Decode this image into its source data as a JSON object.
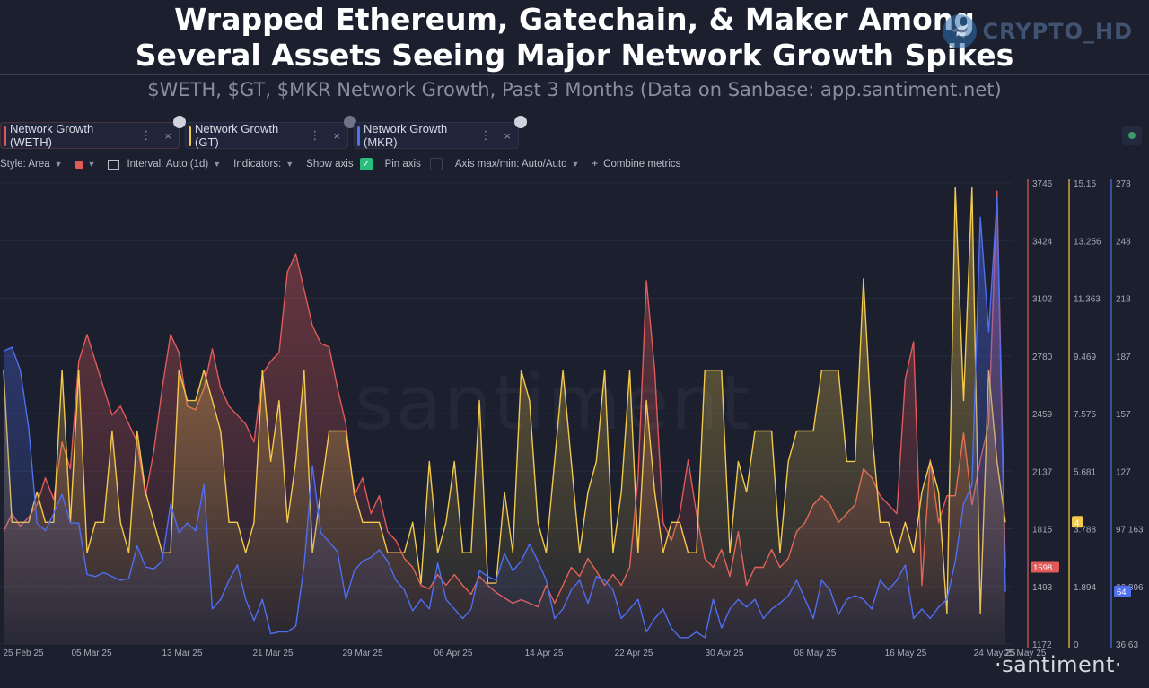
{
  "title": {
    "line1": "Wrapped Ethereum, Gatechain, & Maker Among",
    "line2": "Several Assets Seeing Major Network Growth Spikes"
  },
  "subtitle": "$WETH, $GT, $MKR Network Growth, Past 3 Months (Data on Sanbase: app.santiment.net)",
  "brand_watermark": "CRYPTO_HD",
  "background_watermark": "santiment",
  "footer_logo": "·santiment·",
  "tabs": [
    {
      "label": "Network Growth (WETH)",
      "color": "#e05a5a"
    },
    {
      "label": "Network Growth (GT)",
      "color": "#f2c94c"
    },
    {
      "label": "Network Growth (MKR)",
      "color": "#4f6ef0"
    }
  ],
  "toolbar": {
    "style_label": "Style: Area",
    "interval_label": "Interval: Auto (1d)",
    "indicators_label": "Indicators:",
    "show_axis_label": "Show axis",
    "pin_axis_label": "Pin axis",
    "axis_minmax_label": "Axis max/min: Auto/Auto",
    "combine_label": "Combine metrics"
  },
  "chart_data": {
    "type": "area",
    "title": "$WETH, $GT, $MKR Network Growth, Past 3 Months",
    "x_tick_labels": [
      "25 Feb 25",
      "05 Mar 25",
      "13 Mar 25",
      "21 Mar 25",
      "29 Mar 25",
      "06 Apr 25",
      "14 Apr 25",
      "22 Apr 25",
      "30 Apr 25",
      "08 May 25",
      "16 May 25",
      "24 May 25",
      "25 May 25"
    ],
    "axes": [
      {
        "series": "WETH",
        "color": "#e05a5a",
        "ylim": [
          1172,
          3746
        ],
        "ticks": [
          "3746",
          "3424",
          "3102",
          "2780",
          "2459",
          "2137",
          "1815",
          "1493",
          "1172"
        ],
        "last_value_label": "1598"
      },
      {
        "series": "GT",
        "color": "#f2c94c",
        "ylim": [
          0,
          15.15
        ],
        "ticks": [
          "15.15",
          "13.256",
          "11.363",
          "9.469",
          "7.575",
          "5.681",
          "3.788",
          "1.894",
          "0"
        ],
        "last_value_label": "4"
      },
      {
        "series": "MKR",
        "color": "#4f6ef0",
        "ylim": [
          36.63,
          278
        ],
        "ticks": [
          "278",
          "248",
          "218",
          "187",
          "157",
          "127",
          "97.163",
          "66.896",
          "36.63"
        ],
        "last_value_label": "64"
      }
    ],
    "series": [
      {
        "name": "Network Growth (WETH)",
        "color": "#e05a5a",
        "values": [
          1800,
          1900,
          1830,
          1880,
          1950,
          2100,
          1980,
          2300,
          2150,
          2750,
          2900,
          2750,
          2600,
          2450,
          2500,
          2400,
          2300,
          2000,
          2250,
          2600,
          2900,
          2800,
          2500,
          2480,
          2600,
          2820,
          2600,
          2500,
          2450,
          2400,
          2300,
          2680,
          2750,
          2800,
          3250,
          3350,
          3150,
          2950,
          2850,
          2830,
          2600,
          2400,
          2000,
          2100,
          1900,
          2000,
          1800,
          1750,
          1650,
          1600,
          1500,
          1480,
          1560,
          1500,
          1560,
          1500,
          1450,
          1550,
          1500,
          1460,
          1430,
          1400,
          1420,
          1400,
          1380,
          1500,
          1400,
          1500,
          1600,
          1550,
          1650,
          1580,
          1500,
          1560,
          1500,
          1600,
          2100,
          3200,
          2700,
          1850,
          1750,
          1900,
          2200,
          1900,
          1650,
          1600,
          1700,
          1550,
          1800,
          1500,
          1600,
          1600,
          1700,
          1600,
          1650,
          1800,
          1850,
          1950,
          2000,
          1950,
          1850,
          1900,
          1950,
          2150,
          2100,
          2000,
          1950,
          1900,
          2650,
          2860,
          1500,
          2200,
          1850,
          2000,
          2000,
          2350,
          1950,
          2200,
          2400,
          3700,
          1600
        ]
      },
      {
        "name": "Network Growth (GT)",
        "color": "#f2c94c",
        "values": [
          9,
          4,
          4,
          4,
          5,
          4,
          4,
          9,
          4,
          9,
          3,
          4,
          4,
          7,
          4,
          3,
          7,
          5,
          4,
          3,
          3,
          9,
          8,
          8,
          9,
          8,
          7,
          4,
          4,
          3,
          4,
          9,
          6,
          8,
          4,
          6,
          9,
          3,
          5,
          7,
          7,
          7,
          5,
          4,
          4,
          4,
          3,
          3,
          3,
          4,
          2,
          6,
          3,
          4,
          6,
          3,
          3,
          8,
          2,
          2,
          5,
          3,
          9,
          8,
          4,
          3,
          6,
          9,
          6,
          3,
          5,
          6,
          9,
          3,
          5,
          9,
          3,
          8,
          5,
          3,
          4,
          4,
          3,
          3,
          9,
          9,
          9,
          3,
          6,
          5,
          7,
          7,
          7,
          3,
          6,
          7,
          7,
          7,
          9,
          9,
          9,
          6,
          6,
          12,
          7,
          4,
          4,
          3,
          4,
          3,
          5,
          6,
          5,
          1,
          15,
          8,
          15,
          1,
          9,
          6,
          4
        ]
      },
      {
        "name": "Network Growth (MKR)",
        "color": "#4f6ef0",
        "values": [
          190,
          192,
          180,
          150,
          100,
          96,
          105,
          115,
          100,
          100,
          73,
          72,
          74,
          72,
          70,
          71,
          88,
          77,
          76,
          80,
          110,
          95,
          100,
          96,
          120,
          55,
          60,
          70,
          78,
          60,
          49,
          60,
          42,
          43,
          43,
          46,
          78,
          130,
          95,
          90,
          85,
          60,
          75,
          80,
          82,
          86,
          80,
          70,
          65,
          54,
          60,
          55,
          79,
          60,
          55,
          50,
          55,
          75,
          72,
          70,
          84,
          75,
          80,
          89,
          80,
          70,
          50,
          55,
          65,
          70,
          58,
          72,
          70,
          65,
          50,
          55,
          60,
          43,
          50,
          55,
          45,
          40,
          40,
          43,
          40,
          60,
          45,
          55,
          60,
          56,
          60,
          50,
          55,
          58,
          62,
          70,
          60,
          50,
          70,
          65,
          52,
          60,
          62,
          60,
          55,
          70,
          65,
          70,
          78,
          50,
          55,
          50,
          56,
          60,
          80,
          110,
          120,
          260,
          200,
          270,
          64
        ]
      }
    ]
  }
}
